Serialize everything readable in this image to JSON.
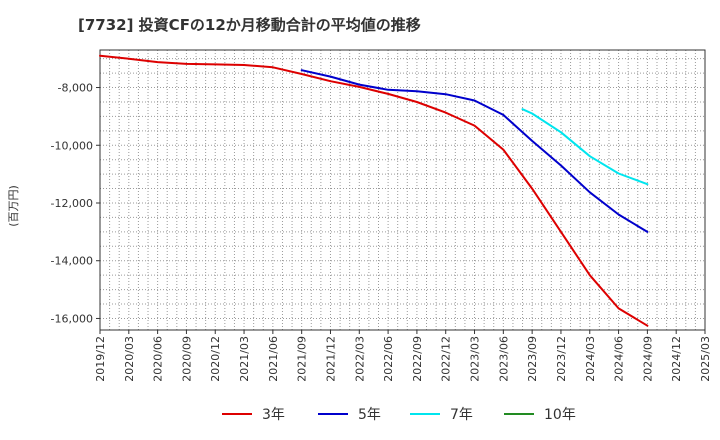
{
  "chart_data": {
    "type": "line",
    "title": "[7732]  投資CFの12か月移動合計の平均値の推移",
    "ylabel": "(百万円)",
    "xlabel": "",
    "ylim": [
      -16400,
      -6700
    ],
    "yticks": [
      -16000,
      -14000,
      -12000,
      -10000,
      -8000
    ],
    "ytick_labels": [
      "-16,000",
      "-14,000",
      "-12,000",
      "-10,000",
      "-8,000"
    ],
    "xlim": [
      "2019-12",
      "2025-03"
    ],
    "xtick_labels": [
      "2019/12",
      "2020/03",
      "2020/06",
      "2020/09",
      "2020/12",
      "2021/03",
      "2021/06",
      "2021/09",
      "2021/12",
      "2022/03",
      "2022/06",
      "2022/09",
      "2022/12",
      "2023/03",
      "2023/06",
      "2023/09",
      "2023/12",
      "2024/03",
      "2024/06",
      "2024/09",
      "2024/12",
      "2025/03"
    ],
    "grid": true,
    "legend_position": "bottom",
    "series": [
      {
        "name": "3年",
        "color": "#dd0000",
        "points": [
          [
            "2019-12",
            -6900
          ],
          [
            "2020-03",
            -7000
          ],
          [
            "2020-06",
            -7120
          ],
          [
            "2020-09",
            -7180
          ],
          [
            "2020-12",
            -7200
          ],
          [
            "2021-03",
            -7220
          ],
          [
            "2021-06",
            -7300
          ],
          [
            "2021-09",
            -7530
          ],
          [
            "2021-12",
            -7780
          ],
          [
            "2022-03",
            -7980
          ],
          [
            "2022-06",
            -8220
          ],
          [
            "2022-09",
            -8500
          ],
          [
            "2022-12",
            -8870
          ],
          [
            "2023-03",
            -9320
          ],
          [
            "2023-06",
            -10150
          ],
          [
            "2023-09",
            -11500
          ],
          [
            "2023-12",
            -13000
          ],
          [
            "2024-03",
            -14500
          ],
          [
            "2024-06",
            -15650
          ],
          [
            "2024-09",
            -16250
          ]
        ]
      },
      {
        "name": "5年",
        "color": "#0000cc",
        "points": [
          [
            "2021-09",
            -7400
          ],
          [
            "2021-12",
            -7620
          ],
          [
            "2022-03",
            -7900
          ],
          [
            "2022-06",
            -8080
          ],
          [
            "2022-09",
            -8130
          ],
          [
            "2022-12",
            -8230
          ],
          [
            "2023-03",
            -8450
          ],
          [
            "2023-06",
            -8950
          ],
          [
            "2023-09",
            -9850
          ],
          [
            "2023-12",
            -10700
          ],
          [
            "2024-03",
            -11630
          ],
          [
            "2024-06",
            -12400
          ],
          [
            "2024-09",
            -13000
          ]
        ]
      },
      {
        "name": "7年",
        "color": "#00e5ee",
        "points": [
          [
            "2023-08",
            -8750
          ],
          [
            "2023-09",
            -8900
          ],
          [
            "2023-12",
            -9550
          ],
          [
            "2024-03",
            -10380
          ],
          [
            "2024-06",
            -10980
          ],
          [
            "2024-09",
            -11350
          ]
        ]
      },
      {
        "name": "10年",
        "color": "#228b22",
        "points": []
      }
    ]
  }
}
